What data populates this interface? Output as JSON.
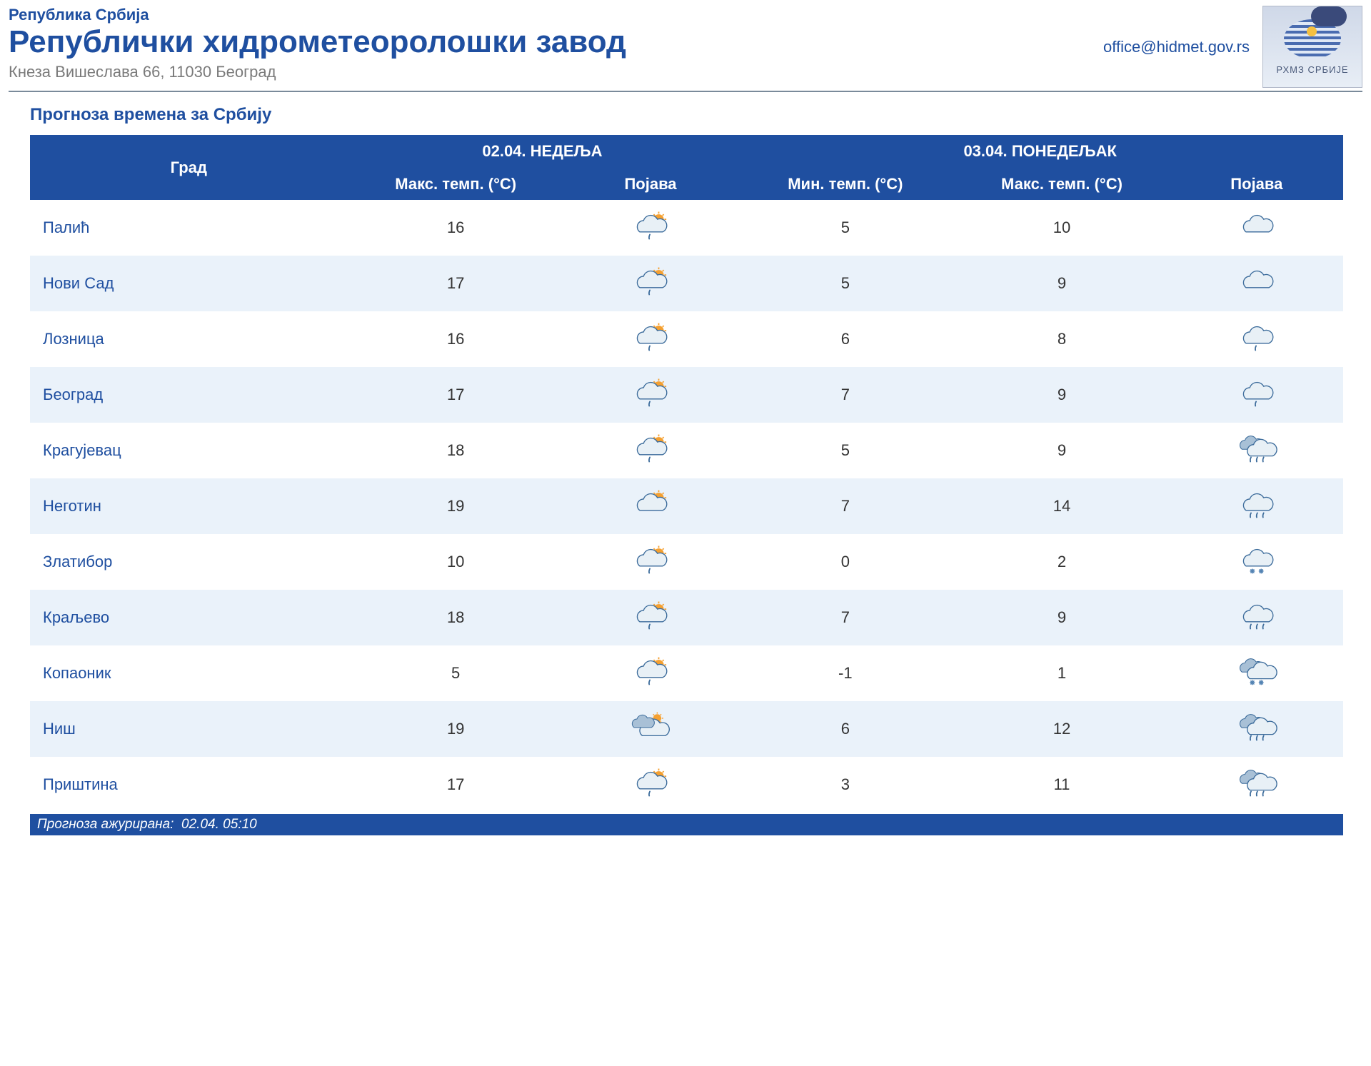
{
  "header": {
    "country": "Република Србија",
    "title": "Републички хидрометеоролошки завод",
    "address": "Кнеза Вишеслава 66, 11030 Београд",
    "email": "office@hidmet.gov.rs",
    "logo_caption": "РХМЗ СРБИЈЕ"
  },
  "section_title": "Прогноза времена за Србију",
  "colors": {
    "header_bg": "#1f4fa0",
    "header_text": "#ffffff",
    "row_even_bg": "#eaf2fa",
    "row_odd_bg": "#ffffff",
    "link": "#1f4fa0",
    "grey_text": "#7a7a7a"
  },
  "table": {
    "headers": {
      "city": "Град",
      "day1_date": "02.04. НЕДЕЉА",
      "day1_max": "Макс. темп. (°C)",
      "day1_cond": "Појава",
      "day2_date": "03.04. ПОНЕДЕЉАК",
      "day2_min": "Мин. темп. (°C)",
      "day2_max": "Макс. темп. (°C)",
      "day2_cond": "Појава"
    },
    "rows": [
      {
        "city": "Палић",
        "d1_max": "16",
        "d1_cond": "partly-cloudy-rain",
        "d2_min": "5",
        "d2_max": "10",
        "d2_cond": "cloudy"
      },
      {
        "city": "Нови Сад",
        "d1_max": "17",
        "d1_cond": "partly-cloudy-rain",
        "d2_min": "5",
        "d2_max": "9",
        "d2_cond": "cloudy"
      },
      {
        "city": "Лозница",
        "d1_max": "16",
        "d1_cond": "partly-cloudy-rain",
        "d2_min": "6",
        "d2_max": "8",
        "d2_cond": "cloudy-rain-light"
      },
      {
        "city": "Београд",
        "d1_max": "17",
        "d1_cond": "partly-cloudy-rain",
        "d2_min": "7",
        "d2_max": "9",
        "d2_cond": "cloudy-rain-light"
      },
      {
        "city": "Крагујевац",
        "d1_max": "18",
        "d1_cond": "partly-cloudy-rain",
        "d2_min": "5",
        "d2_max": "9",
        "d2_cond": "heavy-rain"
      },
      {
        "city": "Неготин",
        "d1_max": "19",
        "d1_cond": "partly-cloudy",
        "d2_min": "7",
        "d2_max": "14",
        "d2_cond": "cloudy-rain"
      },
      {
        "city": "Златибор",
        "d1_max": "10",
        "d1_cond": "partly-cloudy-rain",
        "d2_min": "0",
        "d2_max": "2",
        "d2_cond": "cloudy-snow"
      },
      {
        "city": "Краљево",
        "d1_max": "18",
        "d1_cond": "partly-cloudy-rain",
        "d2_min": "7",
        "d2_max": "9",
        "d2_cond": "cloudy-rain"
      },
      {
        "city": "Копаоник",
        "d1_max": "5",
        "d1_cond": "partly-cloudy-rain",
        "d2_min": "-1",
        "d2_max": "1",
        "d2_cond": "heavy-snow"
      },
      {
        "city": "Ниш",
        "d1_max": "19",
        "d1_cond": "partly-cloudy-small",
        "d2_min": "6",
        "d2_max": "12",
        "d2_cond": "heavy-rain"
      },
      {
        "city": "Приштина",
        "d1_max": "17",
        "d1_cond": "partly-cloudy-rain",
        "d2_min": "3",
        "d2_max": "11",
        "d2_cond": "heavy-rain"
      }
    ]
  },
  "footer": {
    "label": "Прогноза ажурирана:",
    "timestamp": "02.04. 05:10"
  },
  "icon_style": {
    "cloud_fill": "#dde8f0",
    "cloud_stroke": "#3a6a9a",
    "cloud_dark": "#6a8aaa",
    "sun_fill": "#f5a030",
    "rain_stroke": "#3a6a9a",
    "snow_fill": "#7aa0c8"
  }
}
